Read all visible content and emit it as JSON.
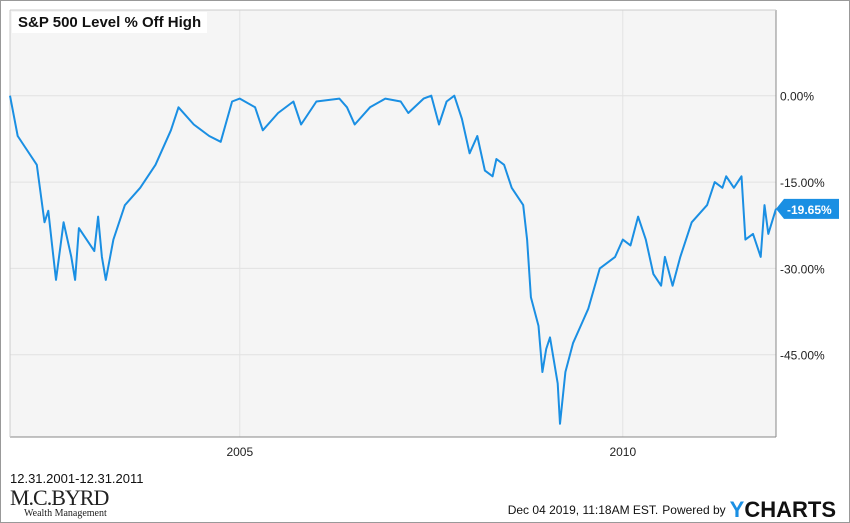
{
  "chart_data": {
    "type": "line",
    "title": "S&P 500 Level % Off High",
    "xlabel": "",
    "ylabel": "",
    "xlim": [
      2002.0,
      2012.0
    ],
    "ylim": [
      -59.3,
      14.9
    ],
    "x_ticks": [
      {
        "value": 2005,
        "label": "2005"
      },
      {
        "value": 2010,
        "label": "2010"
      }
    ],
    "y_ticks": [
      {
        "value": 0,
        "label": "0.00%"
      },
      {
        "value": -15,
        "label": "-15.00%"
      },
      {
        "value": -30,
        "label": "-30.00%"
      },
      {
        "value": -45,
        "label": "-45.00%"
      }
    ],
    "grid": true,
    "series": [
      {
        "name": "S&P 500 Level % Off High",
        "color": "#1a8fe3",
        "x": [
          2002.0,
          2002.1,
          2002.2,
          2002.35,
          2002.45,
          2002.5,
          2002.55,
          2002.6,
          2002.7,
          2002.8,
          2002.85,
          2002.9,
          2003.0,
          2003.1,
          2003.15,
          2003.2,
          2003.25,
          2003.35,
          2003.5,
          2003.7,
          2003.9,
          2004.1,
          2004.2,
          2004.4,
          2004.6,
          2004.75,
          2004.9,
          2005.0,
          2005.2,
          2005.3,
          2005.5,
          2005.7,
          2005.8,
          2006.0,
          2006.3,
          2006.4,
          2006.5,
          2006.7,
          2006.9,
          2007.1,
          2007.2,
          2007.4,
          2007.5,
          2007.6,
          2007.7,
          2007.8,
          2007.9,
          2008.0,
          2008.1,
          2008.2,
          2008.3,
          2008.35,
          2008.45,
          2008.55,
          2008.7,
          2008.75,
          2008.8,
          2008.9,
          2008.95,
          2009.0,
          2009.05,
          2009.15,
          2009.18,
          2009.25,
          2009.35,
          2009.45,
          2009.55,
          2009.7,
          2009.9,
          2010.0,
          2010.1,
          2010.2,
          2010.3,
          2010.4,
          2010.5,
          2010.55,
          2010.65,
          2010.75,
          2010.9,
          2011.1,
          2011.2,
          2011.3,
          2011.35,
          2011.45,
          2011.55,
          2011.6,
          2011.7,
          2011.8,
          2011.85,
          2011.9,
          2012.0
        ],
        "values": [
          0,
          -7,
          -9,
          -12,
          -22,
          -20,
          -26,
          -32,
          -22,
          -28,
          -32,
          -23,
          -25,
          -27,
          -21,
          -28,
          -32,
          -25,
          -19,
          -16,
          -12,
          -6,
          -2,
          -5,
          -7,
          -8,
          -1,
          -0.5,
          -2,
          -6,
          -3,
          -1,
          -5,
          -1,
          -0.5,
          -2,
          -5,
          -2,
          -0.5,
          -1,
          -3,
          -0.5,
          0,
          -5,
          -1,
          0,
          -4,
          -10,
          -7,
          -13,
          -14,
          -11,
          -12,
          -16,
          -19,
          -25,
          -35,
          -40,
          -48,
          -44,
          -42,
          -50,
          -57,
          -48,
          -43,
          -40,
          -37,
          -30,
          -28,
          -25,
          -26,
          -21,
          -25,
          -31,
          -33,
          -28,
          -33,
          -28,
          -22,
          -19,
          -15,
          -16,
          -14,
          -16,
          -14,
          -25,
          -24,
          -28,
          -19,
          -24,
          -19.65
        ]
      }
    ],
    "last_value_label": "-19.65%"
  },
  "range_label": "12.31.2001-12.31.2011",
  "logo": {
    "name": "M.C.BYRD",
    "sub": "Wealth Management"
  },
  "footer": {
    "timestamp": "Dec 04 2019, 11:18AM EST.",
    "powered": "Powered by",
    "brand_y": "Y",
    "brand_rest": "CHARTS"
  }
}
